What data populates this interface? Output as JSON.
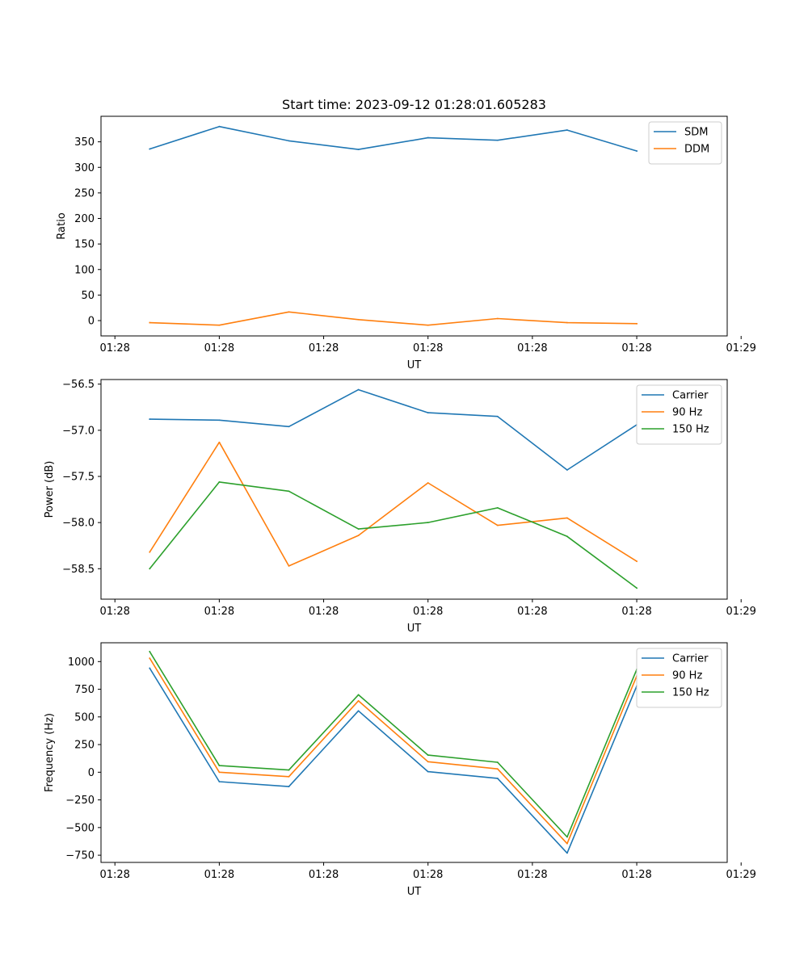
{
  "chart_data": [
    {
      "type": "line",
      "title": "Start time: 2023-09-12 01:28:01.605283",
      "xlabel": "UT",
      "ylabel": "Ratio",
      "x": [
        1,
        2,
        3,
        4,
        5,
        6,
        7,
        8
      ],
      "xlim": [
        0.3,
        9.3
      ],
      "x_ticks": [
        0.5,
        2,
        3.5,
        5,
        6.5,
        8,
        9.5
      ],
      "x_tick_labels": [
        "01:28",
        "01:28",
        "01:28",
        "01:28",
        "01:28",
        "01:28",
        "01:29"
      ],
      "ylim": [
        -30,
        400
      ],
      "y_ticks": [
        0,
        50,
        100,
        150,
        200,
        250,
        300,
        350
      ],
      "legend_position": "top-right",
      "series": [
        {
          "name": "SDM",
          "color": "#1f77b4",
          "values": [
            336,
            380,
            352,
            335,
            358,
            353,
            373,
            332
          ]
        },
        {
          "name": "DDM",
          "color": "#ff7f0e",
          "values": [
            -4,
            -9,
            17,
            2,
            -9,
            4,
            -4,
            -6
          ]
        }
      ]
    },
    {
      "type": "line",
      "title": "",
      "xlabel": "UT",
      "ylabel": "Power (dB)",
      "x": [
        1,
        2,
        3,
        4,
        5,
        6,
        7,
        8
      ],
      "xlim": [
        0.3,
        9.3
      ],
      "x_ticks": [
        0.5,
        2,
        3.5,
        5,
        6.5,
        8,
        9.5
      ],
      "x_tick_labels": [
        "01:28",
        "01:28",
        "01:28",
        "01:28",
        "01:28",
        "01:28",
        "01:29"
      ],
      "ylim": [
        -58.83,
        -56.45
      ],
      "y_ticks": [
        -58.5,
        -58.0,
        -57.5,
        -57.0,
        -56.5
      ],
      "y_tick_labels": [
        "−58.5",
        "−58.0",
        "−57.5",
        "−57.0",
        "−56.5"
      ],
      "legend_position": "top-right",
      "series": [
        {
          "name": "Carrier",
          "color": "#1f77b4",
          "values": [
            -56.88,
            -56.89,
            -56.96,
            -56.56,
            -56.81,
            -56.85,
            -57.43,
            -56.94
          ]
        },
        {
          "name": "90 Hz",
          "color": "#ff7f0e",
          "values": [
            -58.32,
            -57.13,
            -58.47,
            -58.14,
            -57.57,
            -58.03,
            -57.95,
            -58.42
          ]
        },
        {
          "name": "150 Hz",
          "color": "#2ca02c",
          "values": [
            -58.5,
            -57.56,
            -57.66,
            -58.07,
            -58.0,
            -57.84,
            -58.15,
            -58.71
          ]
        }
      ]
    },
    {
      "type": "line",
      "title": "",
      "xlabel": "UT",
      "ylabel": "Frequency (Hz)",
      "x": [
        1,
        2,
        3,
        4,
        5,
        6,
        7,
        8
      ],
      "xlim": [
        0.3,
        9.3
      ],
      "x_ticks": [
        0.5,
        2,
        3.5,
        5,
        6.5,
        8,
        9.5
      ],
      "x_tick_labels": [
        "01:28",
        "01:28",
        "01:28",
        "01:28",
        "01:28",
        "01:28",
        "01:29"
      ],
      "ylim": [
        -815,
        1170
      ],
      "y_ticks": [
        -750,
        -500,
        -250,
        0,
        250,
        500,
        750,
        1000
      ],
      "y_tick_labels": [
        "−750",
        "−500",
        "−250",
        "0",
        "250",
        "500",
        "750",
        "1000"
      ],
      "legend_position": "top-right",
      "series": [
        {
          "name": "Carrier",
          "color": "#1f77b4",
          "values": [
            940,
            -85,
            -130,
            555,
            5,
            -55,
            -730,
            780
          ]
        },
        {
          "name": "90 Hz",
          "color": "#ff7f0e",
          "values": [
            1030,
            0,
            -40,
            645,
            95,
            30,
            -645,
            870
          ]
        },
        {
          "name": "150 Hz",
          "color": "#2ca02c",
          "values": [
            1090,
            60,
            20,
            700,
            155,
            90,
            -585,
            930
          ]
        }
      ]
    }
  ]
}
